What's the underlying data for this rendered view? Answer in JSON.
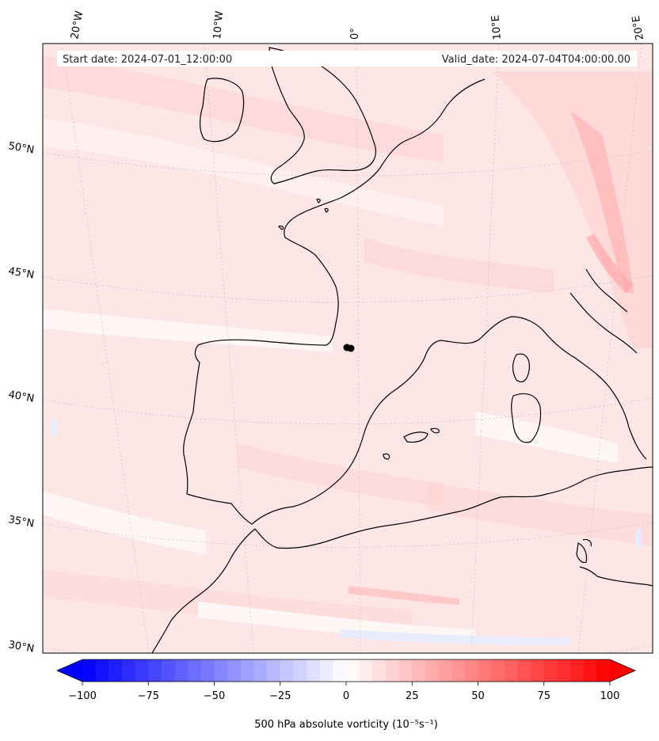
{
  "header": {
    "start_date": "Start date: 2024-07-01_12:00:00",
    "valid_date": "Valid_date: 2024-07-04T04:00:00.00"
  },
  "map": {
    "lon_labels": [
      "20°W",
      "10°W",
      "0°",
      "10°E",
      "20°E"
    ],
    "lat_labels": [
      "50°N",
      "45°N",
      "40°N",
      "35°N",
      "30°N"
    ],
    "field_colors": {
      "weak_positive": "#fde6e6",
      "light_positive": "#ffd4d4",
      "moderate_positive": "#ffbcbc",
      "near_zero": "#fff6f6",
      "weak_negative": "#e6ecff"
    },
    "coastline_color": "#000000",
    "gridline_color": "#bbbbbb"
  },
  "colorbar": {
    "label": "500 hPa absolute vorticity (10⁻⁵s⁻¹)",
    "min": -100,
    "max": 100,
    "levels": 41,
    "ticks": [
      {
        "value": -100,
        "label": "−100"
      },
      {
        "value": -75,
        "label": "−75"
      },
      {
        "value": -50,
        "label": "−50"
      },
      {
        "value": -25,
        "label": "−25"
      },
      {
        "value": 0,
        "label": "0"
      },
      {
        "value": 25,
        "label": "25"
      },
      {
        "value": 50,
        "label": "50"
      },
      {
        "value": 75,
        "label": "75"
      },
      {
        "value": 100,
        "label": "100"
      }
    ],
    "neg_color": "#0000ff",
    "pos_color": "#ff0000"
  }
}
